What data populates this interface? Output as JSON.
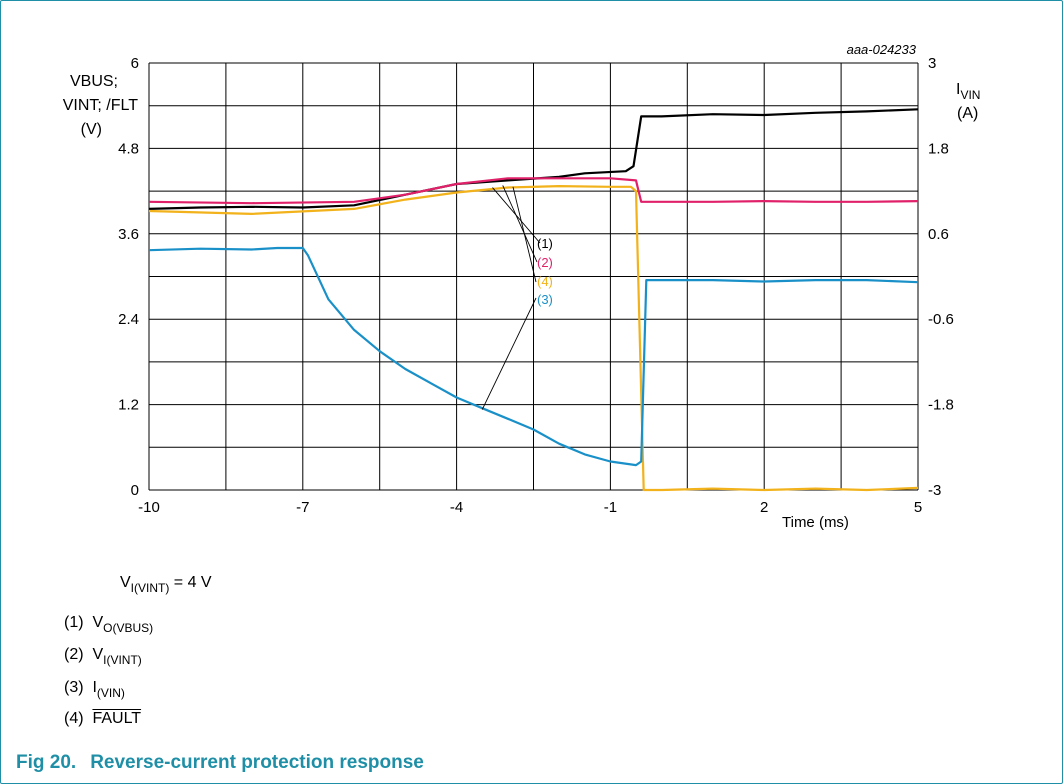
{
  "figure": {
    "caption_number": "Fig 20.",
    "caption_title": "Reverse-current protection response",
    "code": "aaa-024233"
  },
  "chart_data": {
    "type": "line",
    "xlabel": "Time (ms)",
    "xlim": [
      -10,
      5
    ],
    "x_ticks": [
      "-10",
      "-7",
      "-4",
      "-1",
      "2",
      "5"
    ],
    "ylabel": [
      "VBUS;",
      "VINT; /FLT",
      "(V)"
    ],
    "ylim": [
      0,
      6
    ],
    "y_ticks": [
      "0",
      "1.2",
      "2.4",
      "3.6",
      "4.8",
      "6"
    ],
    "y2label": {
      "main": "I",
      "sub": "VIN",
      "unit": "(A)"
    },
    "y2lim": [
      -3,
      3
    ],
    "y2_ticks": [
      "-3",
      "-1.8",
      "-0.6",
      "0.6",
      "1.8",
      "3"
    ],
    "grid": true,
    "series": [
      {
        "label": "(1)",
        "color": "#000000",
        "axis": "left",
        "x": [
          -10,
          -9,
          -8,
          -7,
          -6,
          -5,
          -4,
          -3,
          -2,
          -1.5,
          -0.7,
          -0.55,
          -0.4,
          0,
          1,
          2,
          3,
          4,
          5
        ],
        "y": [
          3.95,
          3.97,
          3.98,
          3.97,
          4.0,
          4.15,
          4.3,
          4.35,
          4.4,
          4.45,
          4.48,
          4.55,
          5.25,
          5.25,
          5.28,
          5.27,
          5.3,
          5.32,
          5.35
        ]
      },
      {
        "label": "(2)",
        "color": "#e0216a",
        "axis": "left",
        "x": [
          -10,
          -8,
          -6,
          -5,
          -4,
          -3,
          -2,
          -1,
          -0.5,
          -0.4,
          0,
          1,
          2,
          3,
          4,
          5
        ],
        "y": [
          4.05,
          4.03,
          4.05,
          4.15,
          4.3,
          4.38,
          4.38,
          4.38,
          4.35,
          4.05,
          4.05,
          4.05,
          4.06,
          4.05,
          4.05,
          4.06
        ]
      },
      {
        "label": "(4)",
        "color": "#f2b21b",
        "axis": "left",
        "x": [
          -10,
          -8,
          -6,
          -5,
          -4,
          -3,
          -2,
          -1,
          -0.6,
          -0.5,
          -0.35,
          0,
          1,
          2,
          3,
          4,
          5
        ],
        "y": [
          3.92,
          3.88,
          3.95,
          4.08,
          4.18,
          4.25,
          4.27,
          4.26,
          4.26,
          4.2,
          0.0,
          0.0,
          0.02,
          0.0,
          0.02,
          0.0,
          0.03
        ]
      },
      {
        "label": "(3)",
        "color": "#1a90c8",
        "axis": "right",
        "x": [
          -10,
          -9,
          -8,
          -7.5,
          -7,
          -6.9,
          -6.5,
          -6,
          -5.5,
          -5,
          -4.5,
          -4,
          -3.5,
          -3,
          -2.5,
          -2,
          -1.5,
          -1,
          -0.5,
          -0.4,
          -0.3,
          0,
          1,
          2,
          3,
          4,
          5
        ],
        "y": [
          0.37,
          0.39,
          0.38,
          0.4,
          0.4,
          0.3,
          -0.32,
          -0.75,
          -1.05,
          -1.3,
          -1.5,
          -1.7,
          -1.85,
          -2.0,
          -2.15,
          -2.35,
          -2.5,
          -2.6,
          -2.65,
          -2.6,
          -0.05,
          -0.05,
          -0.05,
          -0.07,
          -0.05,
          -0.05,
          -0.08
        ]
      }
    ]
  },
  "notes": {
    "condition": {
      "main": "V",
      "sub": "I(VINT)",
      "rest": " = 4 V"
    },
    "legend": [
      {
        "num": "(1)",
        "main": "V",
        "sub": "O(VBUS)"
      },
      {
        "num": "(2)",
        "main": "V",
        "sub": "I(VINT)"
      },
      {
        "num": "(3)",
        "main": "I",
        "sub": "(VIN)"
      },
      {
        "num": "(4)",
        "main": "FAULT",
        "sub": ""
      }
    ]
  }
}
